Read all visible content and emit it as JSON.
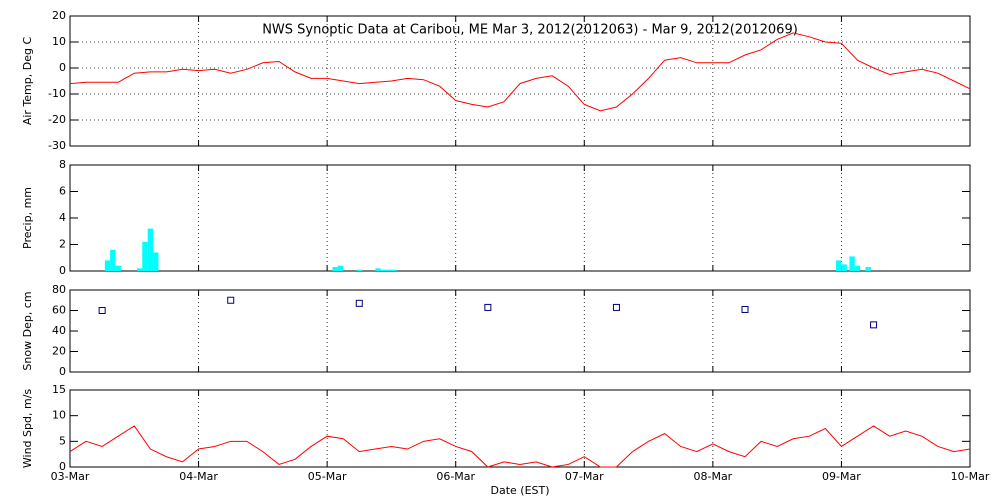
{
  "chart_data": [
    {
      "type": "line",
      "title": "NWS Synoptic Data at Caribou, ME   Mar  3, 2012(2012063) - Mar  9, 2012(2012069)",
      "y_label": "Air Temp, Deg C",
      "color": "#ff0000",
      "xlim": [
        0,
        7
      ],
      "ylim": [
        -30,
        20
      ],
      "yticks": [
        -30,
        -20,
        -10,
        0,
        10,
        20
      ],
      "ygrid": true,
      "xgrid": true,
      "x": [
        0,
        0.125,
        0.25,
        0.375,
        0.5,
        0.625,
        0.75,
        0.875,
        1,
        1.125,
        1.25,
        1.375,
        1.5,
        1.625,
        1.75,
        1.875,
        2,
        2.125,
        2.25,
        2.375,
        2.5,
        2.625,
        2.75,
        2.875,
        3,
        3.125,
        3.25,
        3.375,
        3.5,
        3.625,
        3.75,
        3.875,
        4,
        4.125,
        4.25,
        4.375,
        4.5,
        4.625,
        4.75,
        4.875,
        5,
        5.125,
        5.25,
        5.375,
        5.5,
        5.625,
        5.75,
        5.875,
        6,
        6.125,
        6.25,
        6.375,
        6.5,
        6.625,
        6.75,
        6.875,
        7
      ],
      "values": [
        -6,
        -5.5,
        -5.5,
        -5.5,
        -2,
        -1.5,
        -1.5,
        -0.5,
        -1,
        -0.5,
        -2,
        -0.5,
        2,
        2.5,
        -1.5,
        -4,
        -4,
        -5,
        -6,
        -5.5,
        -5,
        -4,
        -4.5,
        -7,
        -12.5,
        -14,
        -15,
        -13,
        -6,
        -4,
        -3,
        -7,
        -14,
        -16.5,
        -15,
        -10,
        -4,
        3,
        4,
        2,
        2,
        2,
        5,
        7,
        11,
        13.5,
        12,
        10,
        9.5,
        3,
        0,
        -2.5,
        -1.5,
        -0.5,
        -2,
        -5,
        -8
      ]
    },
    {
      "type": "bar",
      "y_label": "Precip, mm",
      "color": "#00ffff",
      "xlim": [
        0,
        7
      ],
      "ylim": [
        0,
        8
      ],
      "yticks": [
        0,
        2,
        4,
        6,
        8
      ],
      "ygrid": false,
      "xgrid": true,
      "x": [
        0.292,
        0.333,
        0.375,
        0.542,
        0.583,
        0.625,
        0.667,
        2.063,
        2.104,
        2.25,
        2.396,
        2.438,
        2.479,
        2.521,
        5.979,
        6.021,
        6.083,
        6.125,
        6.208
      ],
      "values": [
        0.8,
        1.6,
        0.4,
        0.2,
        2.2,
        3.2,
        1.4,
        0.3,
        0.4,
        0.1,
        0.2,
        0.1,
        0.1,
        0.1,
        0.8,
        0.5,
        1.1,
        0.4,
        0.3
      ]
    },
    {
      "type": "scatter",
      "y_label": "Snow Dep, cm",
      "color": "#000080",
      "xlim": [
        0,
        7
      ],
      "ylim": [
        0,
        80
      ],
      "yticks": [
        0,
        20,
        40,
        60,
        80
      ],
      "ygrid": false,
      "xgrid": true,
      "x": [
        0.25,
        1.25,
        2.25,
        3.25,
        4.25,
        5.25,
        6.25
      ],
      "values": [
        60,
        70,
        67,
        63,
        63,
        61,
        46
      ]
    },
    {
      "type": "line",
      "y_label": "Wind Spd, m/s",
      "x_label": "Date (EST)",
      "color": "#ff0000",
      "xlim": [
        0,
        7
      ],
      "ylim": [
        0,
        15
      ],
      "yticks": [
        0,
        5,
        10,
        15
      ],
      "ygrid": false,
      "xgrid": true,
      "xticks": [
        {
          "value": 0,
          "label": "03-Mar"
        },
        {
          "value": 1,
          "label": "04-Mar"
        },
        {
          "value": 2,
          "label": "05-Mar"
        },
        {
          "value": 3,
          "label": "06-Mar"
        },
        {
          "value": 4,
          "label": "07-Mar"
        },
        {
          "value": 5,
          "label": "08-Mar"
        },
        {
          "value": 6,
          "label": "09-Mar"
        },
        {
          "value": 7,
          "label": "10-Mar"
        }
      ],
      "x": [
        0,
        0.125,
        0.25,
        0.375,
        0.5,
        0.625,
        0.75,
        0.875,
        1,
        1.125,
        1.25,
        1.375,
        1.5,
        1.625,
        1.75,
        1.875,
        2,
        2.125,
        2.25,
        2.375,
        2.5,
        2.625,
        2.75,
        2.875,
        3,
        3.125,
        3.25,
        3.375,
        3.5,
        3.625,
        3.75,
        3.875,
        4,
        4.125,
        4.25,
        4.375,
        4.5,
        4.625,
        4.75,
        4.875,
        5,
        5.125,
        5.25,
        5.375,
        5.5,
        5.625,
        5.75,
        5.875,
        6,
        6.125,
        6.25,
        6.375,
        6.5,
        6.625,
        6.75,
        6.875,
        7
      ],
      "values": [
        3,
        5,
        4,
        6,
        8,
        3.5,
        2,
        1,
        3.5,
        4,
        5,
        5,
        3,
        0.5,
        1.5,
        4,
        6,
        5.5,
        3,
        3.5,
        4,
        3.5,
        5,
        5.5,
        4,
        3,
        0,
        1,
        0.5,
        1,
        0,
        0.5,
        2,
        0,
        0,
        3,
        5,
        6.5,
        4,
        3,
        4.5,
        3,
        2,
        5,
        4,
        5.5,
        6,
        7.5,
        4,
        6,
        8,
        6,
        7,
        6,
        4,
        3,
        3.5
      ]
    }
  ]
}
